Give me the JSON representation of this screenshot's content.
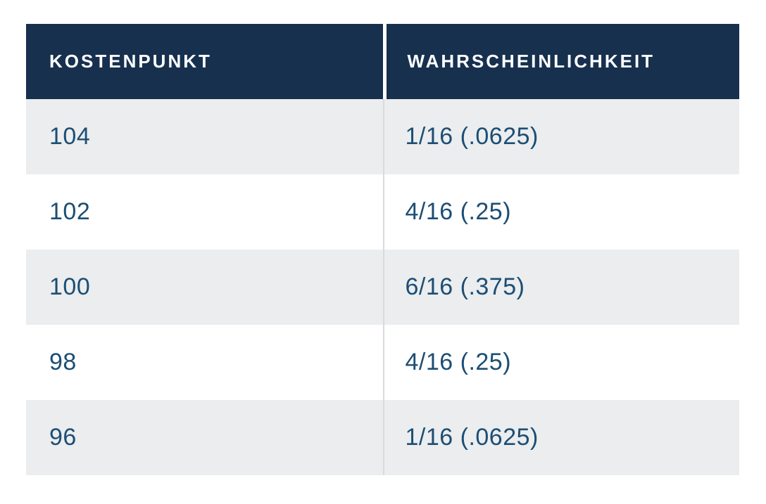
{
  "table": {
    "header": {
      "kostenpunkt": "KOSTENPUNKT",
      "wahrscheinlichkeit": "WAHRSCHEINLICHKEIT"
    },
    "rows": [
      {
        "kostenpunkt": "104",
        "wahrscheinlichkeit": "1/16 (.0625)"
      },
      {
        "kostenpunkt": "102",
        "wahrscheinlichkeit": "4/16 (.25)"
      },
      {
        "kostenpunkt": "100",
        "wahrscheinlichkeit": "6/16 (.375)"
      },
      {
        "kostenpunkt": "98",
        "wahrscheinlichkeit": "4/16 (.25)"
      },
      {
        "kostenpunkt": "96",
        "wahrscheinlichkeit": "1/16 (.0625)"
      }
    ],
    "colors": {
      "header_background": "#17304e",
      "header_text": "#ffffff",
      "body_text": "#1d4e74",
      "row_alt_background": "#ebedee",
      "row_plain_background": "#ffffff",
      "column_divider": "#d9dadb"
    }
  },
  "chart_data": {
    "type": "table",
    "title": "",
    "columns": [
      "KOSTENPUNKT",
      "WAHRSCHEINLICHKEIT"
    ],
    "rows": [
      [
        "104",
        "1/16 (.0625)"
      ],
      [
        "102",
        "4/16 (.25)"
      ],
      [
        "100",
        "6/16 (.375)"
      ],
      [
        "98",
        "4/16 (.25)"
      ],
      [
        "96",
        "1/16 (.0625)"
      ]
    ],
    "kostenpunkt_values": [
      104,
      102,
      100,
      98,
      96
    ],
    "wahrscheinlichkeit_fractions": [
      "1/16",
      "4/16",
      "6/16",
      "4/16",
      "1/16"
    ],
    "wahrscheinlichkeit_decimals": [
      0.0625,
      0.25,
      0.375,
      0.25,
      0.0625
    ]
  }
}
